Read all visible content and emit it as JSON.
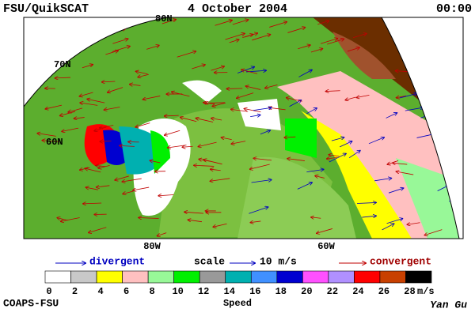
{
  "header": {
    "left": "FSU/QuikSCAT",
    "center": "4 October 2004",
    "right": "00:00"
  },
  "map": {
    "lat_labels": [
      "80N",
      "70N",
      "60N"
    ],
    "lon_labels": [
      "80W",
      "60W"
    ]
  },
  "legend": {
    "divergent": "divergent",
    "scale": "scale",
    "scale_value": "10 m/s",
    "convergent": "convergent"
  },
  "colorbar": {
    "colors": [
      "#ffffff",
      "#c8c8c8",
      "#ffff00",
      "#ffc0c0",
      "#98f898",
      "#00f000",
      "#999999",
      "#00b0b0",
      "#4090ff",
      "#0000d0",
      "#ff50ff",
      "#b090ff",
      "#ff0000",
      "#c84000",
      "#000000"
    ],
    "ticks": [
      0,
      2,
      4,
      6,
      8,
      10,
      12,
      14,
      16,
      18,
      20,
      22,
      24,
      26,
      28
    ],
    "unit": "m/s",
    "label": "Speed"
  },
  "footer": {
    "left": "COAPS-FSU",
    "right": "Yan Gu"
  }
}
